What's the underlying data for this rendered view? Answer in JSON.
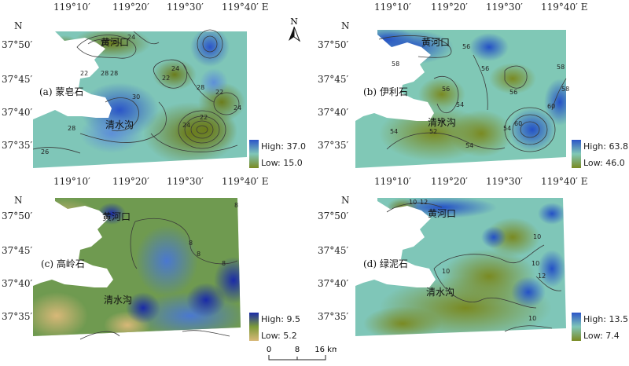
{
  "axis_labels": {
    "lon_ticks_top": [
      "119°10′",
      "119°20′",
      "119°30′",
      "119°40′ E"
    ],
    "lat_ticks": [
      "37°50′",
      "37°45′",
      "37°40′",
      "37°35′"
    ],
    "north_label": "N"
  },
  "north_arrow": {
    "label": "N"
  },
  "panels": [
    {
      "id": "a",
      "label": "(a) 蒙皂石",
      "place_labels": {
        "estuary": "黄河口",
        "creek": "清水沟"
      },
      "legend": {
        "high": "High: 37.0",
        "low": "Low: 15.0",
        "high_color": "#2b55c8",
        "low_color": "#7a8a22"
      },
      "contour_labels": [
        "26",
        "24",
        "22",
        "28",
        "28",
        "30",
        "22",
        "24",
        "24",
        "22",
        "28",
        "28",
        "26",
        "22",
        "24"
      ]
    },
    {
      "id": "b",
      "label": "(b) 伊利石",
      "place_labels": {
        "estuary": "黄河口",
        "creek": "清水沟"
      },
      "legend": {
        "high": "High: 63.8",
        "low": "Low: 46.0",
        "high_color": "#2b55c8",
        "low_color": "#7a8a22"
      },
      "contour_labels": [
        "58",
        "56",
        "56",
        "54",
        "58",
        "54",
        "56",
        "52",
        "54",
        "54",
        "60",
        "60",
        "58",
        "56",
        "52"
      ]
    },
    {
      "id": "c",
      "label": "(c) 高岭石",
      "place_labels": {
        "estuary": "黄河口",
        "creek": "清水沟"
      },
      "legend": {
        "high": "High: 9.5",
        "low": "Low: 5.2",
        "high_color": "#1a2aa8",
        "low_color": "#b89a3a"
      },
      "contour_labels": [
        "8",
        "8",
        "8",
        "8"
      ]
    },
    {
      "id": "d",
      "label": "(d) 绿泥石",
      "place_labels": {
        "estuary": "黄河口",
        "creek": "清水沟"
      },
      "legend": {
        "high": "High: 13.5",
        "low": "Low: 7.4",
        "high_color": "#2b55c8",
        "low_color": "#7a8a22"
      },
      "contour_labels": [
        "10",
        "12",
        "10",
        "10",
        "12",
        "10",
        "10"
      ]
    }
  ],
  "scale_bar": {
    "ticks": [
      "0",
      "8",
      "16 km"
    ]
  }
}
